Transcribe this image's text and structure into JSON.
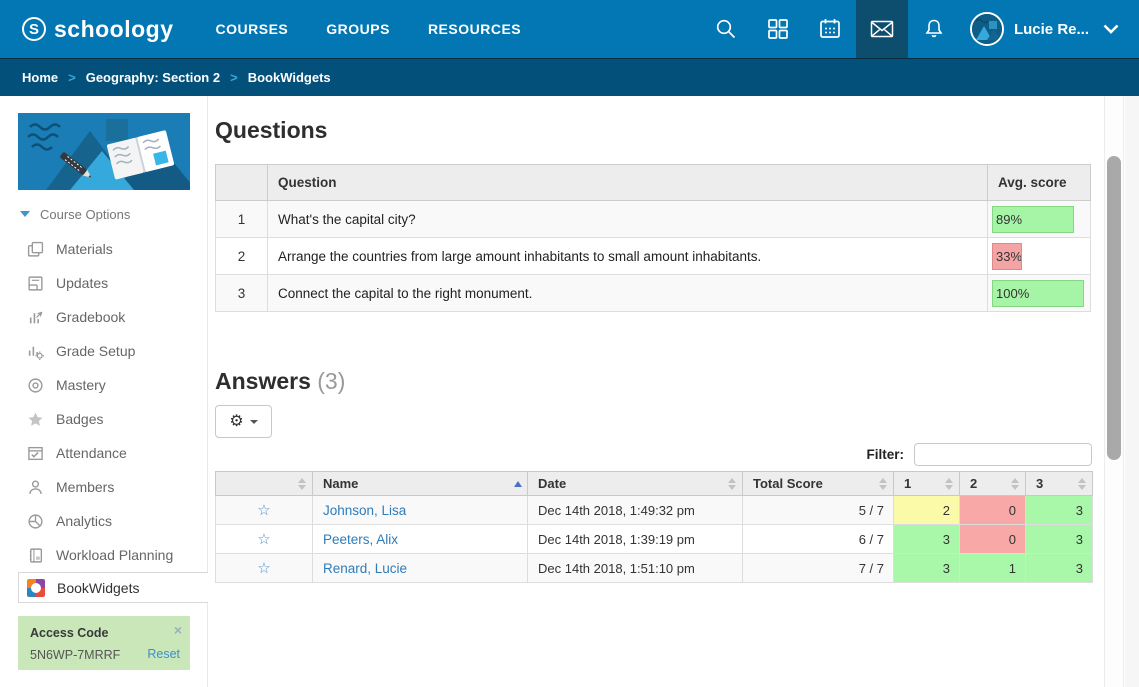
{
  "header": {
    "brand": "schoology",
    "brand_initial": "S",
    "nav": [
      {
        "label": "COURSES"
      },
      {
        "label": "GROUPS"
      },
      {
        "label": "RESOURCES"
      }
    ],
    "icons": [
      "search-icon",
      "apps-grid-icon",
      "calendar-icon",
      "mail-icon",
      "notifications-bell-icon",
      "user-avatar",
      "chevron-down-icon"
    ],
    "user": {
      "name": "Lucie Re..."
    }
  },
  "breadcrumb": {
    "separator": ">",
    "items": [
      {
        "label": "Home"
      },
      {
        "label": "Geography: Section 2"
      },
      {
        "label": "BookWidgets"
      }
    ]
  },
  "sidebar": {
    "course_options_label": "Course Options",
    "items": [
      {
        "label": "Materials",
        "icon": "materials-icon"
      },
      {
        "label": "Updates",
        "icon": "updates-icon"
      },
      {
        "label": "Gradebook",
        "icon": "gradebook-icon"
      },
      {
        "label": "Grade Setup",
        "icon": "grade-setup-icon"
      },
      {
        "label": "Mastery",
        "icon": "mastery-icon"
      },
      {
        "label": "Badges",
        "icon": "badges-icon"
      },
      {
        "label": "Attendance",
        "icon": "attendance-icon"
      },
      {
        "label": "Members",
        "icon": "members-icon"
      },
      {
        "label": "Analytics",
        "icon": "analytics-icon"
      },
      {
        "label": "Workload Planning",
        "icon": "workload-planning-icon"
      },
      {
        "label": "BookWidgets",
        "icon": "bookwidgets-icon",
        "active": true
      }
    ],
    "access_code": {
      "title": "Access Code",
      "code": "5N6WP-7MRRF",
      "reset_label": "Reset",
      "close_glyph": "×"
    }
  },
  "questions": {
    "title": "Questions",
    "columns": {
      "question": "Question",
      "avg_score": "Avg. score"
    },
    "rows": [
      {
        "num": "1",
        "text": "What's the capital city?",
        "avg": "89%",
        "bar_style": "width:89%",
        "color": "green"
      },
      {
        "num": "2",
        "text": "Arrange the countries from large amount inhabitants to small amount inhabitants.",
        "avg": "33%",
        "bar_style": "width:33%",
        "color": "red"
      },
      {
        "num": "3",
        "text": "Connect the capital to the right monument.",
        "avg": "100%",
        "bar_style": "width:100%",
        "color": "green"
      }
    ]
  },
  "answers": {
    "title": "Answers",
    "count": "(3)",
    "filter_label": "Filter:",
    "filter_value": "",
    "columns": {
      "name": "Name",
      "date": "Date",
      "total": "Total Score",
      "q1": "1",
      "q2": "2",
      "q3": "3"
    },
    "sorted_column": "Name",
    "rows": [
      {
        "name": "Johnson, Lisa",
        "date": "Dec 14th 2018, 1:49:32 pm",
        "total": "5 / 7",
        "s1": "2",
        "s2": "0",
        "s3": "3",
        "c1": "yellow",
        "c2": "red",
        "c3": "green"
      },
      {
        "name": "Peeters, Alix",
        "date": "Dec 14th 2018, 1:39:19 pm",
        "total": "6 / 7",
        "s1": "3",
        "s2": "0",
        "s3": "3",
        "c1": "green",
        "c2": "red",
        "c3": "green"
      },
      {
        "name": "Renard, Lucie",
        "date": "Dec 14th 2018, 1:51:10 pm",
        "total": "7 / 7",
        "s1": "3",
        "s2": "1",
        "s3": "3",
        "c1": "green",
        "c2": "green",
        "c3": "green"
      }
    ]
  },
  "icons_glyphs": {
    "gear": "⚙",
    "star": "☆"
  },
  "colors": {
    "navbar": "#0277b4",
    "breadcrumb_bar": "#03507a",
    "active_nav_block": "#0d4d6d",
    "green_bar": "#a6f4a6",
    "red_bar": "#f4a4a4",
    "cell_yellow": "#fafaa8",
    "cell_red": "#f9a8a8",
    "cell_green": "#a9f7a9",
    "link_blue": "#2f7cba",
    "access_code_bg": "#c9e7b9"
  }
}
